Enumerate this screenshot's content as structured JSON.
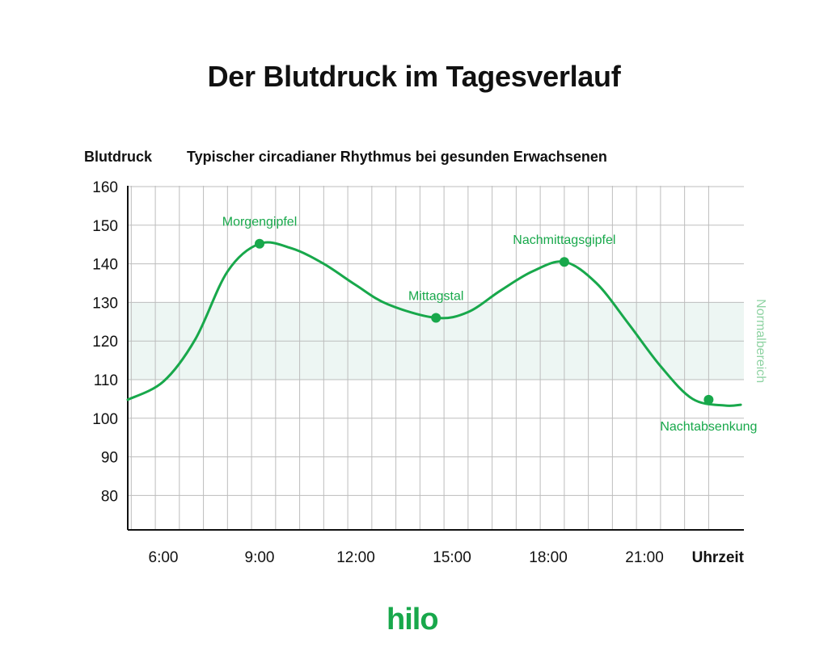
{
  "chart_data": {
    "type": "line",
    "title": "Der Blutdruck im Tagesverlauf",
    "subtitle": "Typischer circadianer Rhythmus bei gesunden Erwachsenen",
    "ylabel": "Blutdruck",
    "xlabel": "Uhrzeit",
    "ylim": [
      70,
      160
    ],
    "yticks": [
      80,
      90,
      100,
      110,
      120,
      130,
      140,
      150,
      160
    ],
    "xlim": [
      5,
      24
    ],
    "xticks": [
      {
        "x": 6,
        "label": "6:00"
      },
      {
        "x": 9,
        "label": "9:00"
      },
      {
        "x": 12,
        "label": "12:00"
      },
      {
        "x": 15,
        "label": "15:00"
      },
      {
        "x": 18,
        "label": "18:00"
      },
      {
        "x": 21,
        "label": "21:00"
      }
    ],
    "grid": true,
    "band": {
      "from": 110,
      "to": 130,
      "label": "Normalbereich"
    },
    "series": [
      {
        "x": [
          5.0,
          6.0,
          7.0,
          8.0,
          9.0,
          10.0,
          11.0,
          12.0,
          13.0,
          14.5,
          15.5,
          16.5,
          17.5,
          18.5,
          19.5,
          20.5,
          21.5,
          22.5,
          23.5,
          24.0
        ],
        "values": [
          104.8,
          109.5,
          120.5,
          138.0,
          145.2,
          144.0,
          140.0,
          134.5,
          129.5,
          126.0,
          127.5,
          133.0,
          138.0,
          140.5,
          135.0,
          124.5,
          113.5,
          105.0,
          103.3,
          103.5
        ]
      }
    ],
    "annotations": [
      {
        "x": 9.0,
        "y": 145.2,
        "label": "Morgengipfel",
        "position": "above"
      },
      {
        "x": 14.5,
        "y": 126.0,
        "label": "Mittagstal",
        "position": "above"
      },
      {
        "x": 18.5,
        "y": 140.5,
        "label": "Nachmittagsgipfel",
        "position": "above"
      },
      {
        "x": 23.0,
        "y": 104.8,
        "label": "Nachtabsenkung",
        "position": "below"
      }
    ],
    "colors": {
      "line": "#18a84b",
      "label": "#18a84b",
      "band": "#edf6f3",
      "band_label": "#8fd3a3",
      "grid": "#bdbdbd",
      "axis": "#111111"
    }
  },
  "logo": {
    "text": "hilo"
  }
}
